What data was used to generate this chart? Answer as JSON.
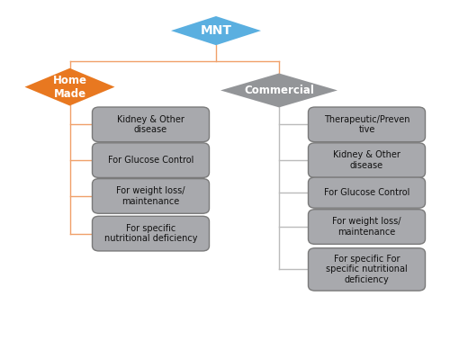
{
  "title": "MNT",
  "mnt_color": "#5AAFE0",
  "home_made_color": "#E87820",
  "commercial_color": "#939598",
  "box_fill_color": "#A8A9AD",
  "box_edge_color": "#7A7A7A",
  "line_color_orange": "#F0A06A",
  "line_color_gray": "#BBBBBB",
  "background_color": "#FFFFFF",
  "home_made_label": "Home\nMade",
  "commercial_label": "Commercial",
  "left_items": [
    "Kidney & Other\ndisease",
    "For Glucose Control",
    "For weight loss/\nmaintenance",
    "For specific\nnutritional deficiency"
  ],
  "right_items": [
    "Therapeutic/Preven\ntive",
    "Kidney & Other\ndisease",
    "For Glucose Control",
    "For weight loss/\nmaintenance",
    "For specific For\nspecific nutritional\ndeficiency"
  ],
  "xlim": [
    0,
    10
  ],
  "ylim": [
    0,
    10
  ]
}
